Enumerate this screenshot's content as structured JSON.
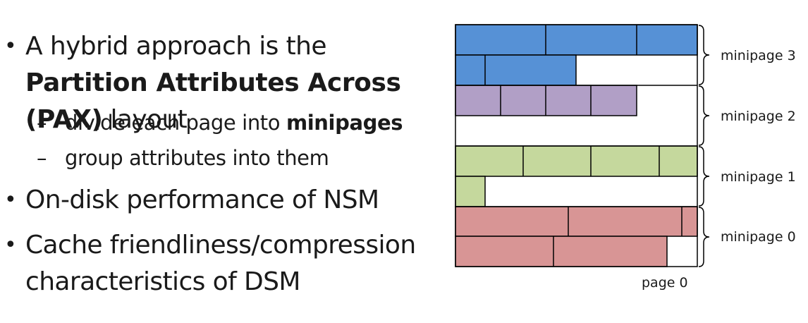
{
  "slide": {
    "bullets": [
      {
        "pre": "A hybrid approach is the ",
        "bold": "Partition Attributes Across (PAX)",
        "post": " layout"
      },
      {
        "text": "On-disk performance of NSM"
      },
      {
        "text": "Cache friendliness/compression characteristics of DSM"
      }
    ],
    "sub_bullets": [
      {
        "pre": "divide each page into ",
        "bold": "minipages"
      },
      {
        "pre": "group attributes into them",
        "bold": ""
      }
    ]
  },
  "diagram": {
    "page_label": "page 0",
    "colors": {
      "mp3": "#5691d6",
      "mp2": "#b19fc6",
      "mp1": "#c5d89d",
      "mp0": "#d89595"
    },
    "minipages": [
      {
        "label": "minipage 3",
        "color": "mp3"
      },
      {
        "label": "minipage 2",
        "color": "mp2"
      },
      {
        "label": "minipage 1",
        "color": "mp1"
      },
      {
        "label": "minipage 0",
        "color": "mp0"
      }
    ]
  }
}
